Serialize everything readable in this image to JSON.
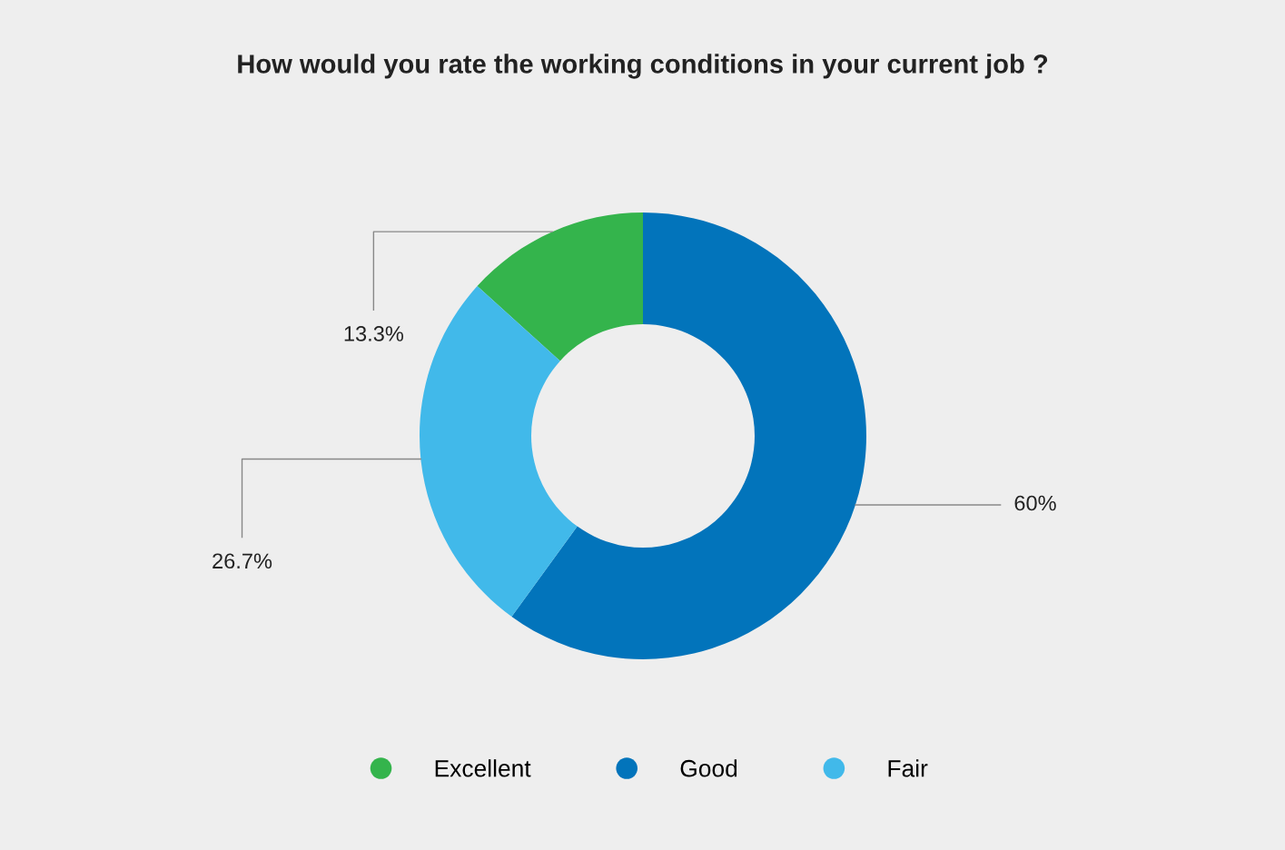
{
  "chart_data": {
    "type": "donut",
    "title": "How would you rate the working conditions in your current job ?",
    "categories": [
      "Excellent",
      "Good",
      "Fair"
    ],
    "values": [
      13.3,
      60,
      26.7
    ],
    "colors": [
      "#34b44c",
      "#0274bb",
      "#41b9ea"
    ],
    "value_labels": [
      "13.3%",
      "60%",
      "26.7%"
    ],
    "legend": "bottom"
  }
}
